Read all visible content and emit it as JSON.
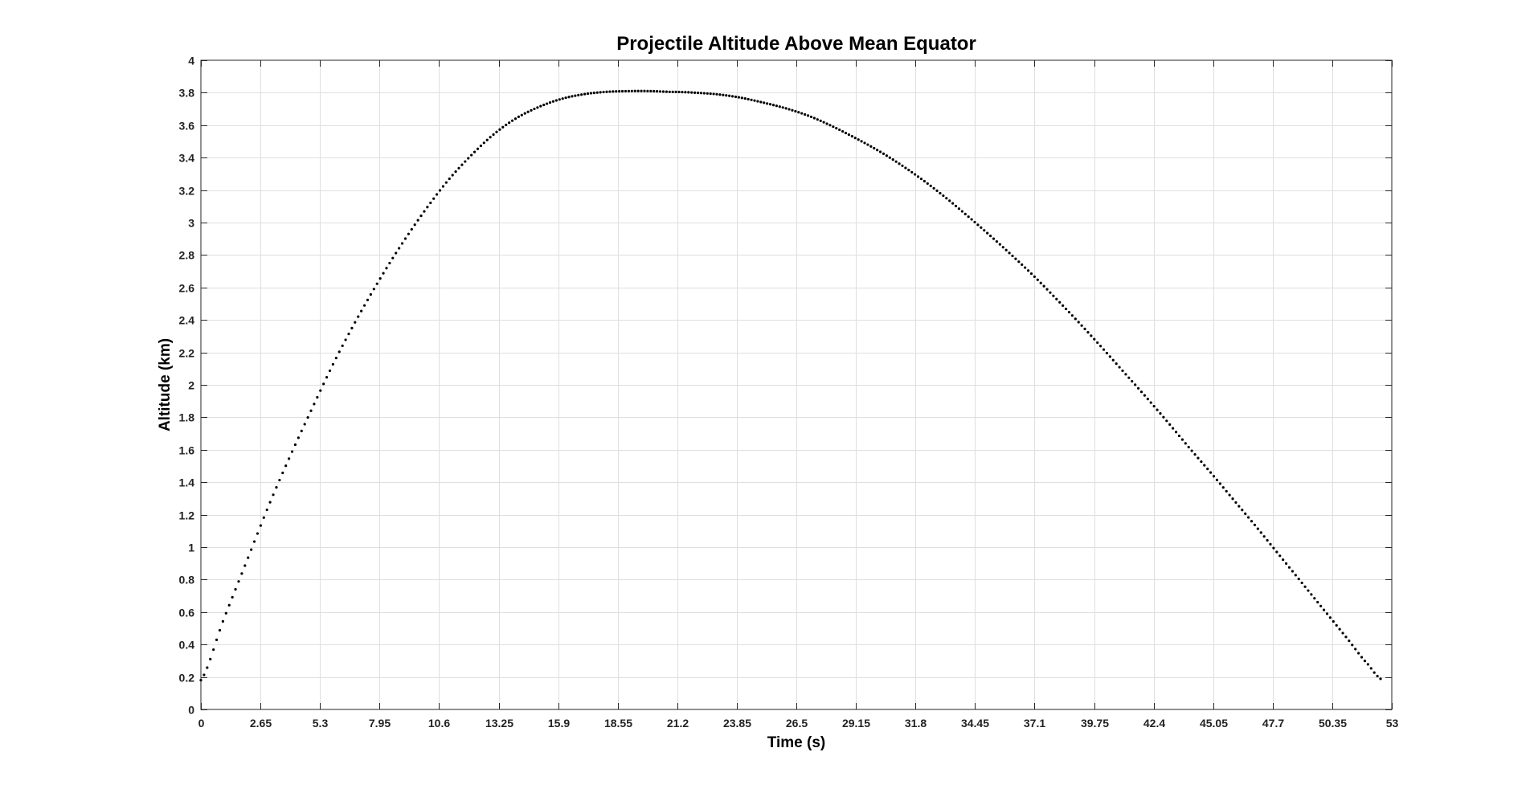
{
  "chart_data": {
    "type": "scatter",
    "title": "Projectile Altitude Above Mean Equator",
    "xlabel": "Time (s)",
    "ylabel": "Altitude (km)",
    "xlim": [
      0,
      53
    ],
    "ylim": [
      0,
      4
    ],
    "grid": true,
    "x_ticks": [
      "0",
      "2.65",
      "5.3",
      "7.95",
      "10.6",
      "13.25",
      "15.9",
      "18.55",
      "21.2",
      "23.85",
      "26.5",
      "29.15",
      "31.8",
      "34.45",
      "37.1",
      "39.75",
      "42.4",
      "45.05",
      "47.7",
      "50.35",
      "53"
    ],
    "y_ticks": [
      "0",
      "0.2",
      "0.4",
      "0.6",
      "0.8",
      "1",
      "1.2",
      "1.4",
      "1.6",
      "1.8",
      "2",
      "2.2",
      "2.4",
      "2.6",
      "2.8",
      "3",
      "3.2",
      "3.4",
      "3.6",
      "3.8",
      "4"
    ],
    "marker_color": "#000000",
    "series": [
      {
        "x": [
          0,
          1,
          2,
          3,
          4,
          5,
          6,
          7,
          8,
          9,
          10,
          11,
          12,
          13,
          14,
          15,
          16,
          17,
          18,
          19,
          20,
          21,
          21.2,
          22,
          23,
          24,
          25,
          26,
          27,
          28,
          29,
          30,
          31,
          32,
          33,
          34,
          35,
          36,
          37,
          38,
          39,
          40,
          41,
          42,
          43,
          44,
          45,
          46,
          47,
          48,
          49,
          50,
          51,
          52,
          52.6
        ],
        "y": [
          0.18,
          0.55,
          0.9,
          1.25,
          1.57,
          1.87,
          2.16,
          2.42,
          2.66,
          2.88,
          3.08,
          3.26,
          3.41,
          3.54,
          3.64,
          3.71,
          3.76,
          3.79,
          3.805,
          3.81,
          3.81,
          3.805,
          3.805,
          3.8,
          3.79,
          3.77,
          3.74,
          3.705,
          3.66,
          3.6,
          3.53,
          3.455,
          3.37,
          3.275,
          3.17,
          3.055,
          2.935,
          2.81,
          2.68,
          2.54,
          2.395,
          2.245,
          2.09,
          1.935,
          1.775,
          1.61,
          1.45,
          1.285,
          1.12,
          0.95,
          0.78,
          0.61,
          0.44,
          0.27,
          0.18
        ]
      }
    ]
  }
}
